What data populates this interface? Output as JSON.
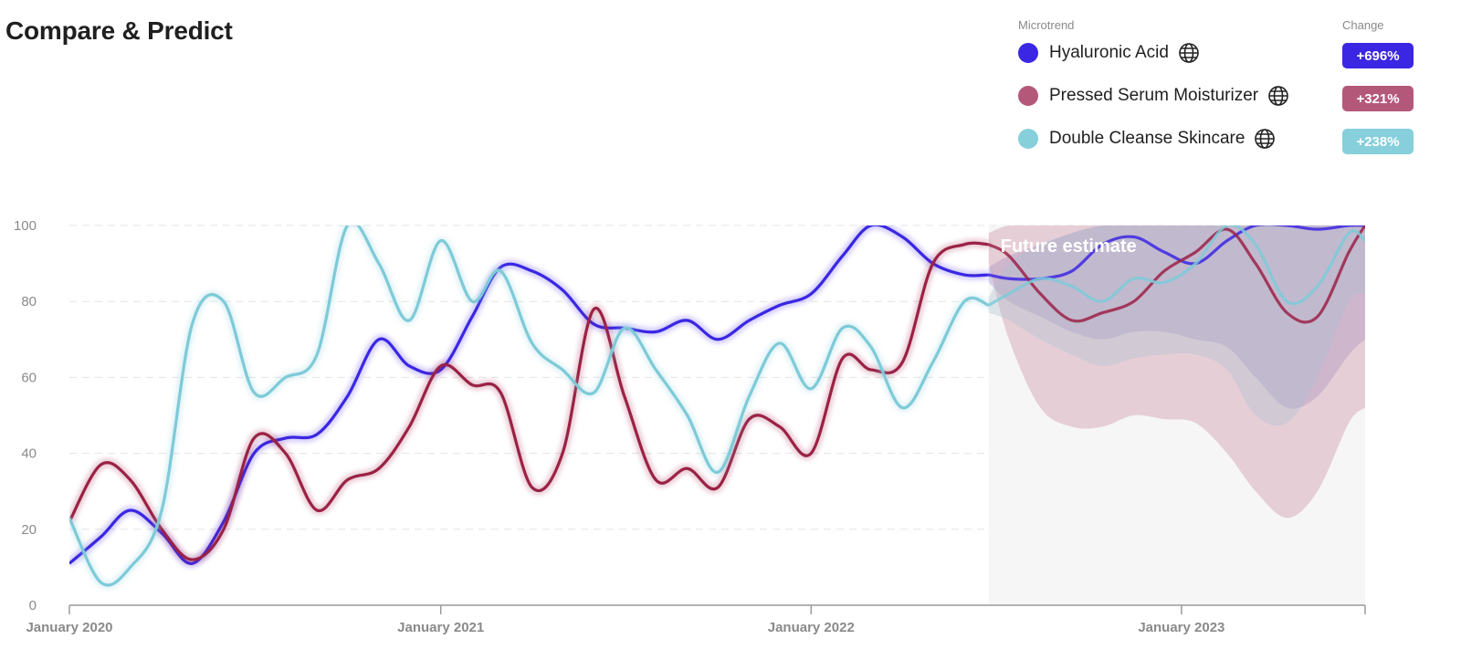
{
  "header": {
    "title": "Compare & Predict"
  },
  "legend": {
    "microtrend_label": "Microtrend",
    "change_label": "Change",
    "items": [
      {
        "label": "Hyaluronic Acid",
        "change": "+696%",
        "color": "#3b26e3",
        "icon": "globe-icon"
      },
      {
        "label": "Pressed Serum Moisturizer",
        "change": "+321%",
        "color": "#b4587a",
        "icon": "globe-icon"
      },
      {
        "label": "Double Cleanse Skincare",
        "change": "+238%",
        "color": "#86cfdb",
        "icon": "globe-icon"
      }
    ]
  },
  "chart_data": {
    "type": "line",
    "title": "",
    "xlabel": "",
    "ylabel": "",
    "ylim": [
      0,
      100
    ],
    "y_ticks": [
      "0",
      "20",
      "40",
      "60",
      "80",
      "100"
    ],
    "x_ticks": [
      "January 2020",
      "January 2021",
      "January 2022",
      "January 2023"
    ],
    "grid": "horizontal dashed",
    "forecast_label": "Future estimate",
    "forecast_start": "2022-06-25",
    "x_range": [
      "2020-01-01",
      "2023-07-01"
    ],
    "series": [
      {
        "name": "Hyaluronic Acid",
        "color": "#3b26e3",
        "x": [
          "2020-01-01",
          "2020-02-01",
          "2020-03-01",
          "2020-04-01",
          "2020-05-01",
          "2020-06-01",
          "2020-07-01",
          "2020-08-01",
          "2020-09-01",
          "2020-10-01",
          "2020-11-01",
          "2020-12-01",
          "2021-01-01",
          "2021-02-01",
          "2021-03-01",
          "2021-04-01",
          "2021-05-01",
          "2021-06-01",
          "2021-07-01",
          "2021-08-01",
          "2021-09-01",
          "2021-10-01",
          "2021-11-01",
          "2021-12-01",
          "2022-01-01",
          "2022-02-01",
          "2022-03-01",
          "2022-04-01",
          "2022-05-01",
          "2022-06-01",
          "2022-06-25"
        ],
        "values": [
          11,
          18,
          25,
          19,
          11,
          22,
          40,
          44,
          45,
          55,
          70,
          63,
          62,
          76,
          89,
          88,
          83,
          74,
          73,
          72,
          75,
          70,
          75,
          79,
          82,
          92,
          100,
          97,
          90,
          87,
          87
        ],
        "forecast_x": [
          "2022-06-25",
          "2022-07-15",
          "2022-08-15",
          "2022-09-15",
          "2022-10-15",
          "2022-11-15",
          "2022-12-15",
          "2023-01-15",
          "2023-02-15",
          "2023-03-15",
          "2023-04-15",
          "2023-05-15",
          "2023-06-15",
          "2023-07-01"
        ],
        "forecast": [
          87,
          86,
          86,
          88,
          95,
          97,
          93,
          90,
          96,
          100,
          100,
          99,
          100,
          100
        ],
        "band_low": [
          85,
          80,
          76,
          72,
          70,
          72,
          72,
          70,
          68,
          60,
          52,
          55,
          66,
          70
        ],
        "band_high": [
          89,
          92,
          95,
          98,
          100,
          100,
          100,
          100,
          100,
          100,
          100,
          100,
          100,
          100
        ]
      },
      {
        "name": "Pressed Serum Moisturizer",
        "color": "#9b2146",
        "x": [
          "2020-01-01",
          "2020-02-01",
          "2020-03-01",
          "2020-04-01",
          "2020-05-01",
          "2020-06-01",
          "2020-07-01",
          "2020-08-01",
          "2020-09-01",
          "2020-10-01",
          "2020-11-01",
          "2020-12-01",
          "2021-01-01",
          "2021-02-01",
          "2021-03-01",
          "2021-04-01",
          "2021-05-01",
          "2021-06-01",
          "2021-07-01",
          "2021-08-01",
          "2021-09-01",
          "2021-10-01",
          "2021-11-01",
          "2021-12-01",
          "2022-01-01",
          "2022-02-01",
          "2022-03-01",
          "2022-04-01",
          "2022-05-01",
          "2022-06-01",
          "2022-06-25"
        ],
        "values": [
          22,
          37,
          33,
          20,
          12,
          20,
          44,
          40,
          25,
          33,
          36,
          47,
          63,
          58,
          56,
          31,
          40,
          78,
          55,
          33,
          36,
          31,
          49,
          47,
          40,
          65,
          62,
          64,
          90,
          95,
          95
        ],
        "forecast_x": [
          "2022-06-25",
          "2022-07-15",
          "2022-08-15",
          "2022-09-15",
          "2022-10-15",
          "2022-11-15",
          "2022-12-15",
          "2023-01-15",
          "2023-02-15",
          "2023-03-15",
          "2023-04-15",
          "2023-05-15",
          "2023-06-15",
          "2023-07-01"
        ],
        "forecast": [
          95,
          92,
          82,
          75,
          77,
          80,
          88,
          93,
          99,
          90,
          77,
          76,
          93,
          100
        ],
        "band_low": [
          90,
          70,
          52,
          47,
          47,
          50,
          49,
          48,
          40,
          30,
          23,
          30,
          48,
          52
        ],
        "band_high": [
          98,
          100,
          100,
          100,
          100,
          100,
          100,
          100,
          100,
          100,
          100,
          100,
          100,
          100
        ]
      },
      {
        "name": "Double Cleanse Skincare",
        "color": "#7dcad8",
        "x": [
          "2020-01-01",
          "2020-02-01",
          "2020-03-01",
          "2020-04-01",
          "2020-05-01",
          "2020-06-01",
          "2020-07-01",
          "2020-08-01",
          "2020-09-01",
          "2020-10-01",
          "2020-11-01",
          "2020-12-01",
          "2021-01-01",
          "2021-02-01",
          "2021-03-01",
          "2021-04-01",
          "2021-05-01",
          "2021-06-01",
          "2021-07-01",
          "2021-08-01",
          "2021-09-01",
          "2021-10-01",
          "2021-11-01",
          "2021-12-01",
          "2022-01-01",
          "2022-02-01",
          "2022-03-01",
          "2022-04-01",
          "2022-05-01",
          "2022-06-01",
          "2022-06-25"
        ],
        "values": [
          23,
          6,
          10,
          25,
          74,
          80,
          56,
          60,
          66,
          100,
          90,
          75,
          96,
          80,
          88,
          69,
          62,
          56,
          73,
          62,
          50,
          35,
          55,
          69,
          57,
          73,
          68,
          52,
          64,
          80,
          79
        ],
        "forecast_x": [
          "2022-06-25",
          "2022-07-15",
          "2022-08-15",
          "2022-09-15",
          "2022-10-15",
          "2022-11-15",
          "2022-12-15",
          "2023-01-15",
          "2023-02-15",
          "2023-03-15",
          "2023-04-15",
          "2023-05-15",
          "2023-06-15",
          "2023-07-01"
        ],
        "forecast": [
          79,
          82,
          86,
          84,
          80,
          86,
          85,
          90,
          100,
          95,
          80,
          84,
          98,
          96
        ],
        "band_low": [
          77,
          75,
          70,
          66,
          63,
          65,
          66,
          66,
          62,
          50,
          48,
          60,
          80,
          82
        ],
        "band_high": [
          81,
          90,
          95,
          98,
          100,
          100,
          100,
          100,
          100,
          100,
          100,
          100,
          100,
          100
        ]
      }
    ]
  }
}
